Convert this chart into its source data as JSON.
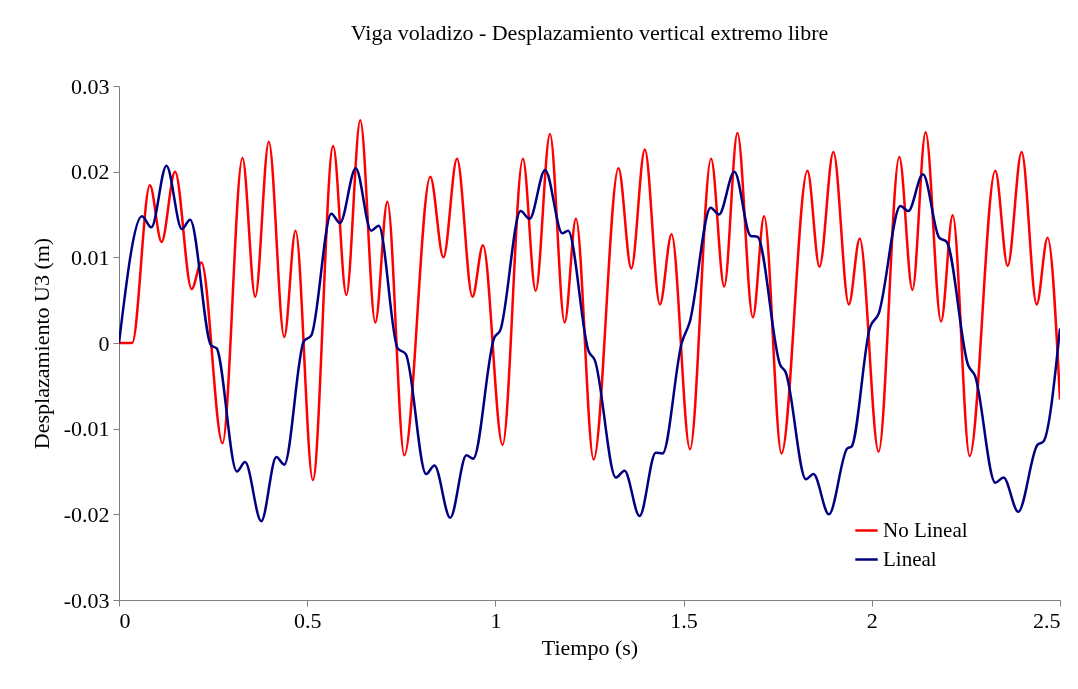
{
  "chart_data": {
    "type": "line",
    "title": "Viga voladizo - Desplazamiento vertical extremo libre",
    "xlabel": "Tiempo (s)",
    "ylabel": "Desplazamiento U3 (m)",
    "xlim": [
      0,
      2.5
    ],
    "xticks": [
      0,
      0.5,
      1,
      1.5,
      2,
      2.5
    ],
    "ylim": [
      -0.03,
      0.03
    ],
    "yticks": [
      -0.03,
      -0.02,
      -0.01,
      0,
      0.01,
      0.02,
      0.03
    ],
    "grid": false,
    "legend": "bottom right",
    "marker": "none",
    "line_style": "solid",
    "series": [
      {
        "name": "No Lineal",
        "color": "#ff0000",
        "x": [
          0,
          0.035,
          0.082,
          0.113,
          0.149,
          0.193,
          0.219,
          0.275,
          0.328,
          0.362,
          0.398,
          0.439,
          0.469,
          0.515,
          0.569,
          0.604,
          0.641,
          0.681,
          0.713,
          0.758,
          0.827,
          0.862,
          0.898,
          0.939,
          0.967,
          1.019,
          1.073,
          1.107,
          1.145,
          1.184,
          1.214,
          1.261,
          1.327,
          1.361,
          1.397,
          1.437,
          1.468,
          1.517,
          1.573,
          1.608,
          1.643,
          1.684,
          1.714,
          1.76,
          1.829,
          1.861,
          1.898,
          1.939,
          1.968,
          2.018,
          2.073,
          2.108,
          2.143,
          2.184,
          2.215,
          2.26,
          2.328,
          2.361,
          2.398,
          2.438,
          2.467,
          2.5
        ],
        "values": [
          0,
          0,
          0.0184,
          0.0118,
          0.02,
          0.0063,
          0.0094,
          -0.0117,
          0.0216,
          0.0054,
          0.0235,
          0.0007,
          0.0131,
          -0.016,
          0.023,
          0.0056,
          0.026,
          0.0024,
          0.0165,
          -0.0131,
          0.0194,
          0.01,
          0.0215,
          0.0054,
          0.0114,
          -0.0119,
          0.0215,
          0.0061,
          0.0244,
          0.0024,
          0.0145,
          -0.0136,
          0.0204,
          0.0087,
          0.0226,
          0.0045,
          0.0127,
          -0.0124,
          0.0215,
          0.0066,
          0.0245,
          0.003,
          0.0148,
          -0.0129,
          0.0201,
          0.0089,
          0.0223,
          0.0045,
          0.0122,
          -0.0127,
          0.0217,
          0.0062,
          0.0246,
          0.0025,
          0.0149,
          -0.0132,
          0.0201,
          0.009,
          0.0223,
          0.0045,
          0.0123,
          -0.0066
        ]
      },
      {
        "name": "Lineal",
        "color": "#000080",
        "x": [
          0,
          0.061,
          0.086,
          0.126,
          0.167,
          0.189,
          0.245,
          0.259,
          0.313,
          0.335,
          0.378,
          0.418,
          0.439,
          0.491,
          0.511,
          0.564,
          0.587,
          0.629,
          0.67,
          0.69,
          0.74,
          0.762,
          0.816,
          0.838,
          0.88,
          0.923,
          0.941,
          0.997,
          1.013,
          1.067,
          1.091,
          1.132,
          1.178,
          1.193,
          1.248,
          1.264,
          1.32,
          1.343,
          1.383,
          1.426,
          1.444,
          1.495,
          1.516,
          1.572,
          1.594,
          1.635,
          1.678,
          1.696,
          1.757,
          1.771,
          1.825,
          1.845,
          1.886,
          1.935,
          1.946,
          1.995,
          2.018,
          2.076,
          2.097,
          2.136,
          2.179,
          2.199,
          2.256,
          2.274,
          2.328,
          2.35,
          2.389,
          2.44,
          2.456,
          2.5
        ],
        "values": [
          0,
          0.0148,
          0.0135,
          0.0207,
          0.0133,
          0.0144,
          -0.0003,
          -0.0006,
          -0.015,
          -0.0139,
          -0.0208,
          -0.0133,
          -0.0142,
          0.0002,
          0.0009,
          0.0151,
          0.014,
          0.0204,
          0.0131,
          0.0137,
          -0.0006,
          -0.0013,
          -0.0153,
          -0.0143,
          -0.0204,
          -0.0131,
          -0.0135,
          0.0006,
          0.0015,
          0.0154,
          0.0145,
          0.0202,
          0.0128,
          0.0131,
          -0.001,
          -0.002,
          -0.0157,
          -0.0149,
          -0.0202,
          -0.0128,
          -0.0129,
          0,
          0.0024,
          0.0158,
          0.015,
          0.02,
          0.0125,
          0.0124,
          -0.0026,
          -0.0034,
          -0.0159,
          -0.0153,
          -0.02,
          -0.0123,
          -0.0121,
          0.0018,
          0.0034,
          0.016,
          0.0154,
          0.0197,
          0.0123,
          0.0118,
          -0.0026,
          -0.0038,
          -0.0163,
          -0.0157,
          -0.0197,
          -0.0119,
          -0.0115,
          0.0017
        ]
      }
    ]
  }
}
